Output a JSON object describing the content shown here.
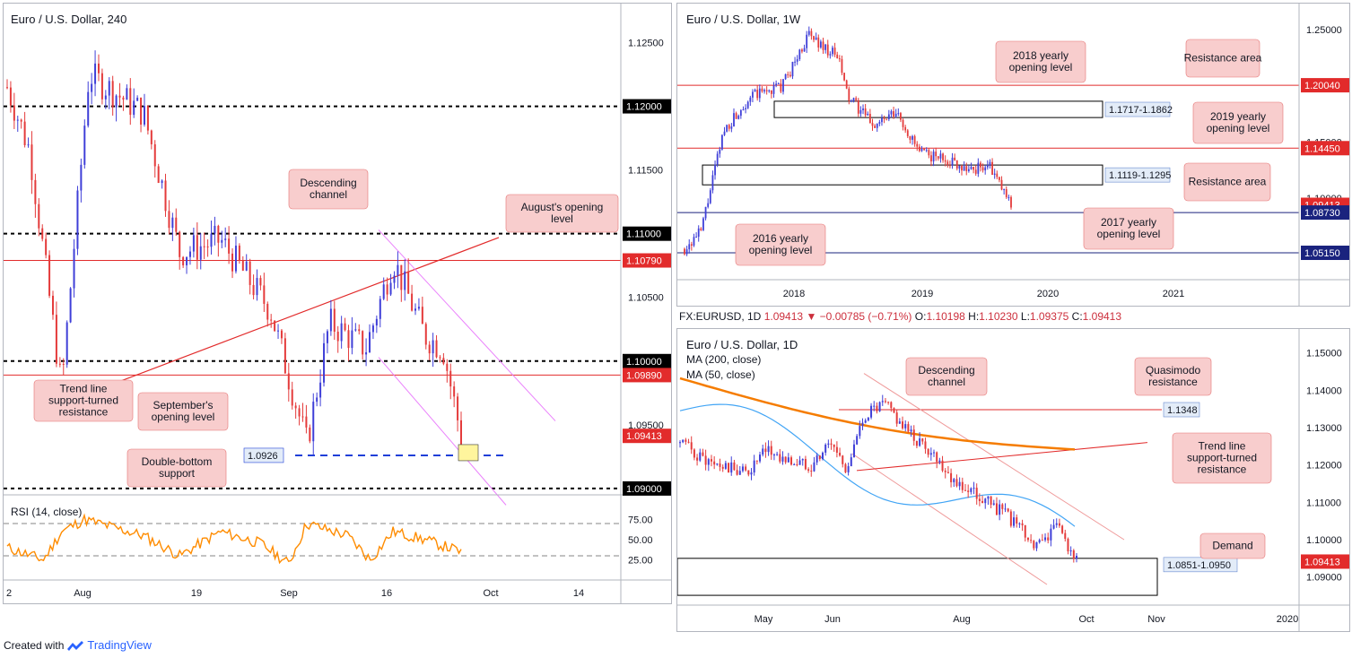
{
  "footer": {
    "created_with": "Created with",
    "brand": "TradingView"
  },
  "top_info": {
    "symbol": "FX:EURUSD, 1D",
    "last": "1.09413",
    "change": "−0.00785 (−0.71%)",
    "o_label": "O:",
    "o": "1.10198",
    "h_label": "H:",
    "h": "1.10230",
    "l_label": "L:",
    "l": "1.09375",
    "c_label": "C:",
    "c": "1.09413"
  },
  "colors": {
    "bull": "#3f3fd8",
    "bear": "#e43b3b",
    "red_line": "#e22b2b",
    "navy_line": "#1a237e",
    "rsi": "#ff8c00",
    "ma200": "#f57c00",
    "ma50": "#42a5f5",
    "channel": "#ea80fc",
    "label_bg": "#f8cdcd"
  },
  "chart_data": [
    {
      "id": "h4",
      "type": "candlestick",
      "title": "Euro / U.S. Dollar, 240",
      "x_ticks": [
        "2",
        "Aug",
        "19",
        "Sep",
        "16",
        "Oct",
        "14"
      ],
      "y_ticks": [
        "1.12500",
        "1.11500",
        "1.10500",
        "1.09500"
      ],
      "ylim": [
        1.0895,
        1.1275
      ],
      "levels": [
        {
          "value": 1.12,
          "label": "1.12000",
          "style": "dashed-black"
        },
        {
          "value": 1.11,
          "label": "1.11000",
          "style": "dashed-black"
        },
        {
          "value": 1.1079,
          "label": "1.10790",
          "style": "red"
        },
        {
          "value": 1.1,
          "label": "1.10000",
          "style": "dashed-black"
        },
        {
          "value": 1.0989,
          "label": "1.09890",
          "style": "red"
        },
        {
          "value": 1.09413,
          "label": "1.09413",
          "style": "red-current"
        },
        {
          "value": 1.09,
          "label": "1.09000",
          "style": "dashed-black"
        }
      ],
      "double_bottom": {
        "value": 1.0926,
        "label": "1.0926"
      },
      "annotations": [
        "Descending channel",
        "August's opening level",
        "Trend line support-turned resistance",
        "September's opening level",
        "Double-bottom support"
      ],
      "rsi": {
        "title": "RSI (14, close)",
        "ticks": [
          "75.00",
          "50.00",
          "25.00"
        ],
        "levels": [
          70,
          30
        ]
      }
    },
    {
      "id": "weekly",
      "type": "candlestick",
      "title": "Euro / U.S. Dollar, 1W",
      "x_ticks": [
        "2018",
        "2019",
        "2020",
        "2021"
      ],
      "y_ticks": [
        "1.25000",
        "1.15000",
        "1.10000"
      ],
      "ylim": [
        1.03,
        1.265
      ],
      "levels": [
        {
          "value": 1.2004,
          "label": "1.20040",
          "style": "red"
        },
        {
          "value": 1.1445,
          "label": "1.14450",
          "style": "red"
        },
        {
          "value": 1.09413,
          "label": "1.09413",
          "style": "red-current"
        },
        {
          "value": 1.0873,
          "label": "1.08730",
          "style": "navy"
        },
        {
          "value": 1.0515,
          "label": "1.05150",
          "style": "navy"
        }
      ],
      "zones": [
        {
          "label": "1.1717-1.1862",
          "low": 1.1717,
          "high": 1.1862
        },
        {
          "label": "1.1119-1.1295",
          "low": 1.1119,
          "high": 1.1295
        }
      ],
      "annotations": [
        "2018 yearly opening level",
        "Resistance area",
        "2019 yearly opening level",
        "Resistance area",
        "2016 yearly opening level",
        "2017 yearly opening level"
      ]
    },
    {
      "id": "daily",
      "type": "candlestick",
      "title": "Euro / U.S. Dollar, 1D",
      "x_ticks": [
        "May",
        "Jun",
        "Aug",
        "Oct",
        "Nov",
        "2020"
      ],
      "y_ticks": [
        "1.15000",
        "1.14000",
        "1.13000",
        "1.12000",
        "1.11000",
        "1.10000",
        "1.09000"
      ],
      "ylim": [
        1.0832,
        1.1552
      ],
      "ma": [
        {
          "name": "MA (200, close)"
        },
        {
          "name": "MA (50, close)"
        }
      ],
      "levels": [
        {
          "value": 1.09413,
          "label": "1.09413",
          "style": "red-current"
        }
      ],
      "marks": [
        {
          "label": "1.1348",
          "value": 1.1348
        },
        {
          "label": "1.0851-1.0950",
          "low": 1.0851,
          "high": 1.095
        }
      ],
      "annotations": [
        "Descending channel",
        "Quasimodo resistance",
        "Trend line support-turned resistance",
        "Demand"
      ]
    }
  ]
}
